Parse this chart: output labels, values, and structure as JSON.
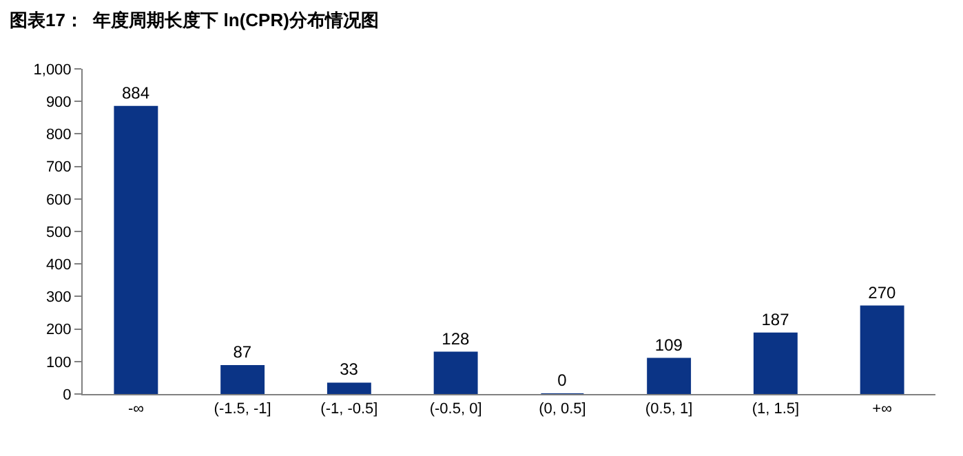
{
  "chart_data": {
    "type": "bar",
    "title": "图表17：  年度周期长度下 ln(CPR)分布情况图",
    "categories": [
      "-∞",
      "(-1.5, -1]",
      "(-1, -0.5]",
      "(-0.5, 0]",
      "(0, 0.5]",
      "(0.5, 1]",
      "(1, 1.5]",
      "+∞"
    ],
    "values": [
      884,
      87,
      33,
      128,
      0,
      109,
      187,
      270
    ],
    "color": "#0b3486",
    "ylim": [
      0,
      1000
    ],
    "yticks": [
      0,
      100,
      200,
      300,
      400,
      500,
      600,
      700,
      800,
      900,
      {
        "value": 1000,
        "label": "1,000"
      }
    ],
    "data_labels": true
  }
}
